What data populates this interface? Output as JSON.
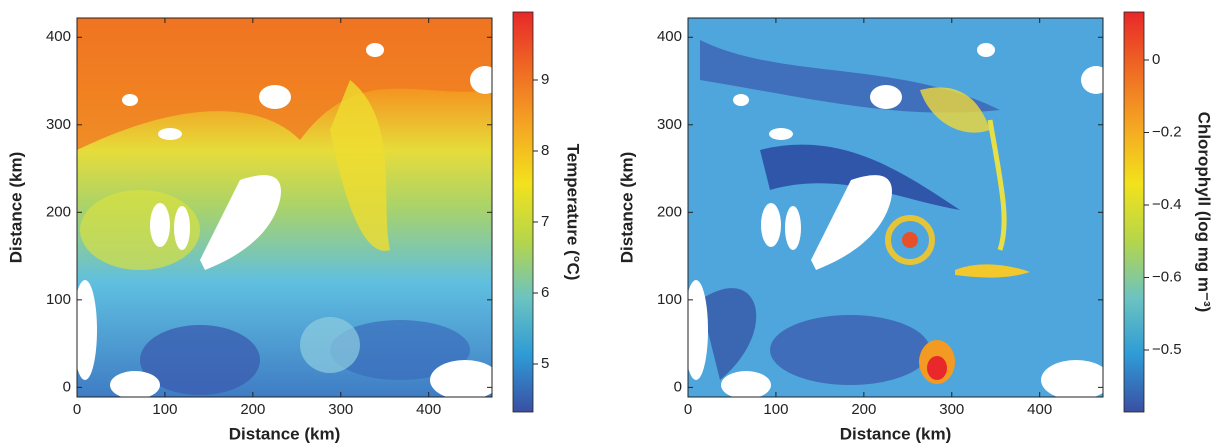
{
  "chart_data": [
    {
      "type": "heatmap",
      "xlabel": "Distance (km)",
      "ylabel": "Distance (km)",
      "xlim": [
        0,
        472
      ],
      "ylim": [
        -11,
        422
      ],
      "xticks": [
        0,
        100,
        200,
        300,
        400
      ],
      "yticks": [
        0,
        100,
        200,
        300,
        400
      ],
      "colorbar": {
        "label": "Temperature (°C)",
        "ticks": [
          9,
          8,
          7,
          6,
          5
        ],
        "colormap": [
          "#3a4fa3",
          "#2f9bd6",
          "#6cc3c0",
          "#b6d64a",
          "#f2e21c",
          "#f5a623",
          "#ef6a23",
          "#e8282a"
        ]
      }
    },
    {
      "type": "heatmap",
      "xlabel": "Distance (km)",
      "ylabel": "Distance (km)",
      "xlim": [
        0,
        472
      ],
      "ylim": [
        -11,
        422
      ],
      "xticks": [
        0,
        100,
        200,
        300,
        400
      ],
      "yticks": [
        0,
        100,
        200,
        300,
        400
      ],
      "colorbar": {
        "label": "Chlorophyll (log mg m⁻³)",
        "ticks": [
          0,
          {
            "value": -0.2,
            "label": "−0.2"
          },
          {
            "value": -0.4,
            "label": "−0.4"
          },
          {
            "value": -0.6,
            "label": "−0.6"
          },
          {
            "value": -0.5,
            "label": "−0.5"
          }
        ],
        "colormap": [
          "#3a4fa3",
          "#2f9bd6",
          "#6cc3c0",
          "#b6d64a",
          "#f2e21c",
          "#f5a623",
          "#ef6a23",
          "#e8282a"
        ]
      }
    }
  ]
}
